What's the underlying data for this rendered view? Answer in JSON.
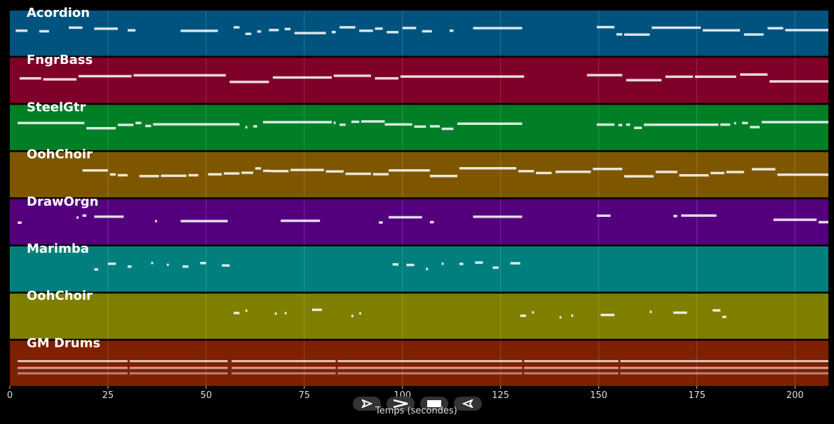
{
  "chart_data": {
    "type": "piano-roll",
    "xlabel": "Temps (secondes)",
    "xlim": [
      0,
      208.5
    ],
    "xticks": [
      0,
      25,
      50,
      75,
      100,
      125,
      150,
      175,
      200
    ],
    "grid": true,
    "tracks": [
      {
        "name": "Acordion",
        "color": "#00537e",
        "activity": [
          [
            1.5,
            4.5
          ],
          [
            7.5,
            10
          ],
          [
            15,
            18.5
          ],
          [
            21.5,
            27.5
          ],
          [
            30,
            32
          ],
          [
            43.5,
            53
          ],
          [
            57,
            58.5
          ],
          [
            60,
            61.5
          ],
          [
            63,
            64
          ],
          [
            66,
            68.5
          ],
          [
            70,
            71.5
          ],
          [
            72.5,
            80.5
          ],
          [
            82,
            83
          ],
          [
            84,
            88
          ],
          [
            89,
            92.5
          ],
          [
            93,
            95
          ],
          [
            96,
            99
          ],
          [
            100,
            103.5
          ],
          [
            105,
            107.5
          ],
          [
            112,
            113
          ],
          [
            118,
            130.5
          ],
          [
            149.5,
            154
          ],
          [
            154.5,
            156
          ],
          [
            156.5,
            163
          ],
          [
            163.5,
            176
          ],
          [
            176.5,
            186
          ],
          [
            187,
            192
          ],
          [
            193,
            197
          ],
          [
            197.5,
            208.5
          ]
        ]
      },
      {
        "name": "FngrBass",
        "color": "#7f0028",
        "activity": [
          [
            2.5,
            8
          ],
          [
            8.5,
            17
          ],
          [
            17.5,
            31
          ],
          [
            31.5,
            55
          ],
          [
            56,
            66
          ],
          [
            67,
            82
          ],
          [
            82.5,
            92
          ],
          [
            93,
            99
          ],
          [
            99.5,
            131
          ],
          [
            147,
            156
          ],
          [
            157,
            166
          ],
          [
            167,
            174
          ],
          [
            174.5,
            185
          ],
          [
            186,
            193
          ],
          [
            193.5,
            208.5
          ]
        ]
      },
      {
        "name": "SteelGtr",
        "color": "#007f27",
        "activity": [
          [
            2,
            19
          ],
          [
            19.5,
            27
          ],
          [
            27.5,
            31.5
          ],
          [
            32,
            33.5
          ],
          [
            34.5,
            36
          ],
          [
            36.5,
            58.5
          ],
          [
            60,
            60.5
          ],
          [
            62,
            63
          ],
          [
            64.5,
            82
          ],
          [
            82.5,
            83
          ],
          [
            84,
            85.5
          ],
          [
            87,
            89
          ],
          [
            89.5,
            95.5
          ],
          [
            95.5,
            102.5
          ],
          [
            103,
            106
          ],
          [
            107,
            109.5
          ],
          [
            110,
            113
          ],
          [
            114,
            130.5
          ],
          [
            149.5,
            154
          ],
          [
            155,
            156
          ],
          [
            157,
            158
          ],
          [
            159,
            161
          ],
          [
            161.5,
            180.5
          ],
          [
            181,
            183.5
          ],
          [
            184.5,
            185
          ],
          [
            186.5,
            188
          ],
          [
            188.5,
            191
          ],
          [
            191.5,
            208.5
          ]
        ]
      },
      {
        "name": "OohChoir",
        "color": "#7f5600",
        "activity": [
          [
            18.5,
            25
          ],
          [
            25.5,
            27
          ],
          [
            27.5,
            30
          ],
          [
            33,
            38
          ],
          [
            38.5,
            45
          ],
          [
            45.5,
            48
          ],
          [
            50.5,
            54
          ],
          [
            54.5,
            58.5
          ],
          [
            59,
            62
          ],
          [
            62.5,
            64
          ],
          [
            64.5,
            66.5
          ],
          [
            66.5,
            71
          ],
          [
            71.5,
            80
          ],
          [
            80.5,
            85
          ],
          [
            85.5,
            92
          ],
          [
            92.5,
            96.5
          ],
          [
            96.5,
            107
          ],
          [
            107,
            114
          ],
          [
            114.5,
            129
          ],
          [
            129.5,
            133.5
          ],
          [
            134,
            138
          ],
          [
            139,
            148
          ],
          [
            148.5,
            156
          ],
          [
            156.5,
            164
          ],
          [
            164.5,
            170
          ],
          [
            170.5,
            178
          ],
          [
            178.5,
            182
          ],
          [
            182.5,
            187
          ],
          [
            189,
            195
          ],
          [
            195.5,
            208.5
          ]
        ]
      },
      {
        "name": "DrawOrgn",
        "color": "#54007e",
        "activity": [
          [
            2,
            3
          ],
          [
            17,
            17.5
          ],
          [
            18.5,
            19.5
          ],
          [
            21.5,
            29
          ],
          [
            37,
            37.5
          ],
          [
            43.5,
            55.5
          ],
          [
            69,
            79
          ],
          [
            94,
            95
          ],
          [
            96.5,
            105
          ],
          [
            107,
            108
          ],
          [
            118,
            130.5
          ],
          [
            149.5,
            153
          ],
          [
            169,
            170
          ],
          [
            171,
            180
          ],
          [
            194.5,
            205.5
          ],
          [
            206,
            208.5
          ]
        ]
      },
      {
        "name": "Marimba",
        "color": "#007f7e",
        "activity": [
          [
            21.5,
            22.5
          ],
          [
            25,
            27
          ],
          [
            30,
            31
          ],
          [
            36,
            36.5
          ],
          [
            40,
            40.5
          ],
          [
            44,
            45.5
          ],
          [
            48.5,
            50
          ],
          [
            54,
            56
          ],
          [
            97.5,
            99
          ],
          [
            101,
            103
          ],
          [
            106,
            106.5
          ],
          [
            110,
            110.5
          ],
          [
            114.5,
            115.5
          ],
          [
            118.5,
            120.5
          ],
          [
            123,
            124.5
          ],
          [
            127.5,
            130
          ]
        ]
      },
      {
        "name": "OohChoir",
        "color": "#7f7f00",
        "activity": [
          [
            57,
            58.5
          ],
          [
            60,
            60.5
          ],
          [
            67.5,
            68
          ],
          [
            70,
            70.5
          ],
          [
            77,
            79.5
          ],
          [
            87,
            87.5
          ],
          [
            89,
            89.5
          ],
          [
            130,
            131.5
          ],
          [
            133,
            133.5
          ],
          [
            140,
            140.5
          ],
          [
            143,
            143.5
          ],
          [
            150.5,
            154
          ],
          [
            163,
            163.5
          ],
          [
            169,
            172.5
          ],
          [
            179,
            181
          ],
          [
            181.5,
            182.5
          ]
        ]
      },
      {
        "name": "GM Drums",
        "color": "#7f2000",
        "activity": [
          [
            2,
            30
          ],
          [
            30.5,
            55.5
          ],
          [
            56.5,
            83
          ],
          [
            83.5,
            130.5
          ],
          [
            131,
            155
          ],
          [
            155.5,
            208.5
          ]
        ]
      }
    ]
  },
  "controls": {
    "buttons": [
      {
        "name": "play-button",
        "icon": "play-icon"
      },
      {
        "name": "fast-forward-button",
        "icon": "fast-forward-icon"
      },
      {
        "name": "stop-button",
        "icon": "stop-icon"
      },
      {
        "name": "rewind-button",
        "icon": "rewind-icon"
      }
    ]
  }
}
